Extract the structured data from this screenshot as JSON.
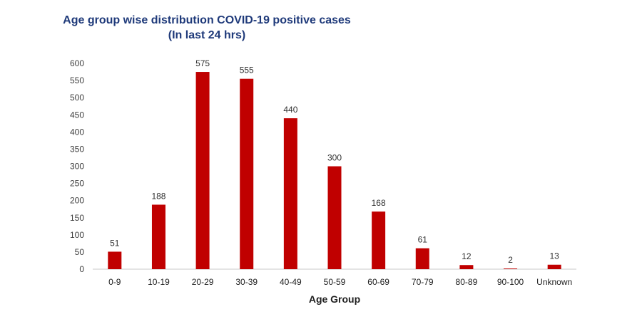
{
  "chart_data": {
    "type": "bar",
    "title": "Age group wise distribution COVID-19 positive cases",
    "subtitle": "(In last 24 hrs)",
    "xlabel": "Age Group",
    "ylabel": "",
    "categories": [
      "0-9",
      "10-19",
      "20-29",
      "30-39",
      "40-49",
      "50-59",
      "60-69",
      "70-79",
      "80-89",
      "90-100",
      "Unknown"
    ],
    "values": [
      51,
      188,
      575,
      555,
      440,
      300,
      168,
      61,
      12,
      2,
      13
    ],
    "data_labels": [
      "51",
      "188",
      "575",
      "555",
      "440",
      "300",
      "168",
      "61",
      "12",
      "2",
      "13"
    ],
    "yticks": [
      "0",
      "50",
      "100",
      "150",
      "200",
      "250",
      "300",
      "350",
      "400",
      "450",
      "500",
      "550",
      "600"
    ],
    "ylim": [
      0,
      600
    ],
    "grid": false,
    "legend": "none",
    "bar_color": "#c00000",
    "title_color": "#1f3a7a"
  }
}
